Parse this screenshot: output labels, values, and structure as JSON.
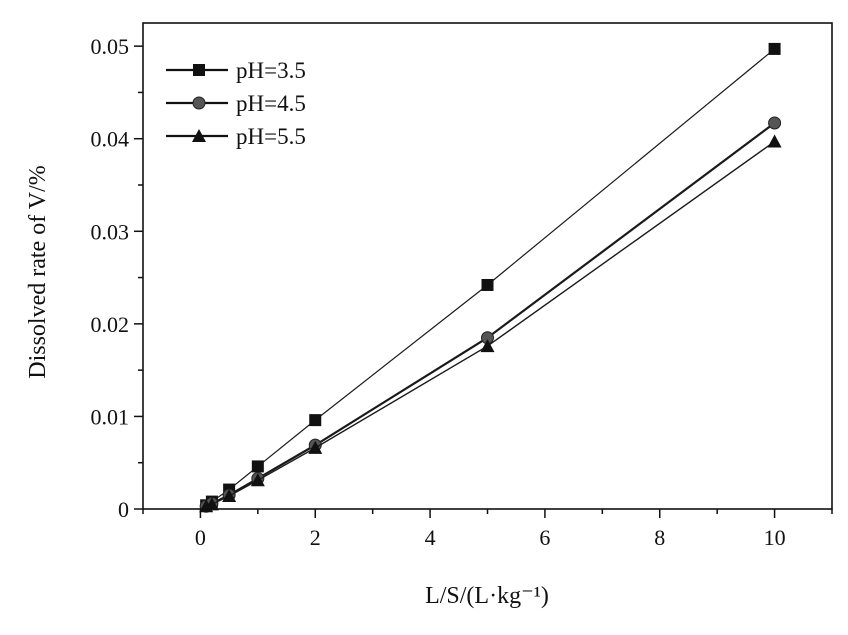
{
  "chart_data": {
    "type": "line",
    "xlabel": "L/S/(L·kg⁻¹)",
    "ylabel": "Dissolved rate of V/%",
    "xlim": [
      -1,
      11
    ],
    "ylim": [
      0,
      0.0525
    ],
    "x_ticks": [
      0,
      2,
      4,
      6,
      8,
      10
    ],
    "x_tick_labels": [
      "0",
      "2",
      "4",
      "6",
      "8",
      "10"
    ],
    "y_ticks": [
      0,
      0.01,
      0.02,
      0.03,
      0.04,
      0.05
    ],
    "y_tick_labels": [
      "0",
      "0.01",
      "0.02",
      "0.03",
      "0.04",
      "0.05"
    ],
    "grid": false,
    "legend_position": "top-left",
    "series": [
      {
        "name": "pH=3.5",
        "marker": "square",
        "x": [
          0.1,
          0.2,
          0.5,
          1,
          2,
          5,
          10
        ],
        "y": [
          0.0004,
          0.0008,
          0.0021,
          0.0046,
          0.0096,
          0.0242,
          0.0497
        ]
      },
      {
        "name": "pH=4.5",
        "marker": "circle",
        "x": [
          0.1,
          0.2,
          0.5,
          1,
          2,
          5,
          10
        ],
        "y": [
          0.0003,
          0.0006,
          0.0015,
          0.0033,
          0.0069,
          0.0185,
          0.0417
        ]
      },
      {
        "name": "pH=5.5",
        "marker": "triangle",
        "x": [
          0.1,
          0.2,
          0.5,
          1,
          2,
          5,
          10
        ],
        "y": [
          0.0003,
          0.0005,
          0.0014,
          0.0031,
          0.0066,
          0.0176,
          0.0397
        ]
      }
    ]
  }
}
